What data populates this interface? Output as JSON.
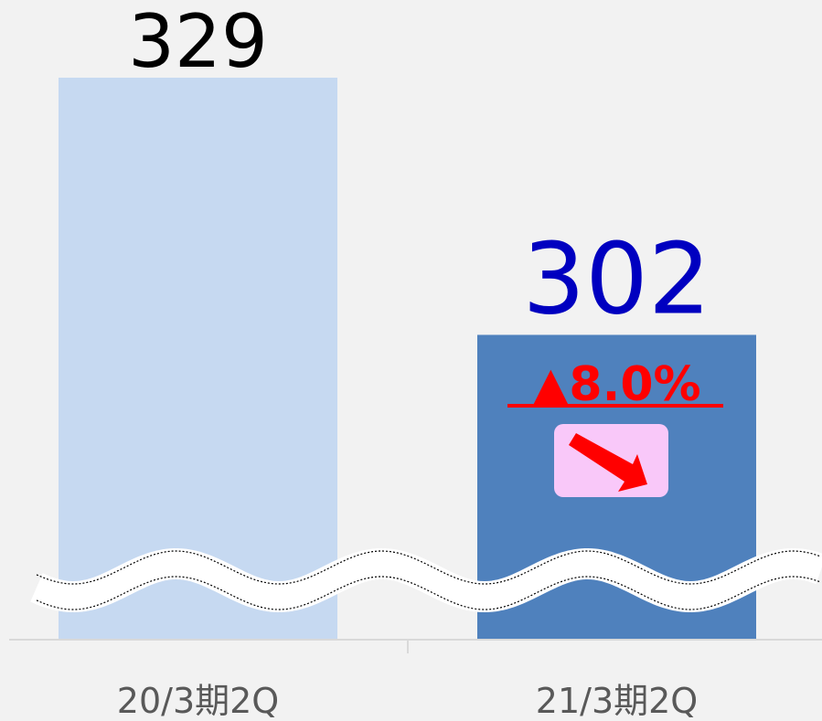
{
  "chart_data": {
    "type": "bar",
    "categories": [
      "20/3期2Q",
      "21/3期2Q"
    ],
    "values": [
      329,
      302
    ],
    "colors": [
      "#c6d9f1",
      "#4f81bd"
    ],
    "label_colors": [
      "#000000",
      "#0000c0"
    ],
    "ylim": [
      270,
      330
    ],
    "annotation": "▲8.0%",
    "annotation_color": "#ff0000",
    "axis_break": true
  }
}
